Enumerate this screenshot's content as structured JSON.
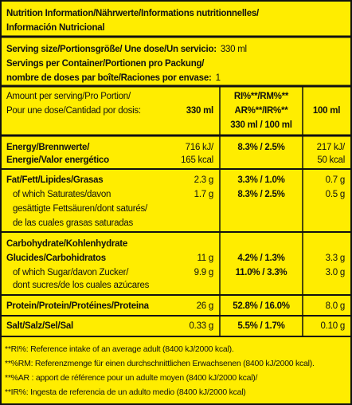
{
  "header": {
    "title": [
      "Nutrition Information/Nährwerte/Informations nutritionnelles/",
      "Información Nutricional"
    ]
  },
  "serving": {
    "size": {
      "label": "Serving size/Portionsgröße/ Une dose/Un servicio:",
      "value": "330 ml"
    },
    "per_container": {
      "label": [
        "Servings per Container/Portionen pro Packung/",
        "nombre de doses par boîte/Raciones por envase:"
      ],
      "value": "1"
    }
  },
  "table": {
    "columns": {
      "amount": [
        "Amount per serving/Pro Portion/",
        "Pour une dose/Cantidad por dosis:"
      ],
      "per_serving": "330 ml",
      "reference": [
        "RI%**/RM%**",
        "AR%**/IR%**",
        "330 ml / 100 ml"
      ],
      "per_100ml": "100 ml"
    },
    "rows": [
      {
        "label": [
          "Energy/Brennwerte/",
          "Energie/Valor energético"
        ],
        "per_serving": [
          "716 kJ/",
          "165 kcal"
        ],
        "reference": "8.3% / 2.5%",
        "per_100ml": [
          "217 kJ/",
          "50 kcal"
        ]
      },
      {
        "label": [
          "Fat/Fett/Lipides/Grasas"
        ],
        "per_serving": [
          "2.3 g"
        ],
        "reference": "3.3% / 1.0%",
        "per_100ml": [
          "0.7 g"
        ]
      },
      {
        "label": [
          "of which Saturates/davon",
          "gesättigte Fettsäuren/dont saturés/",
          "de las cuales grasas saturadas"
        ],
        "per_serving": [
          "1.7 g"
        ],
        "reference": "8.3% / 2.5%",
        "per_100ml": [
          "0.5 g"
        ]
      },
      {
        "label": [
          "Carbohydrate/Kohlenhydrate",
          "Glucides/Carbohidratos"
        ],
        "per_serving": [
          "11 g"
        ],
        "reference": "4.2% / 1.3%",
        "per_100ml": [
          "3.3 g"
        ]
      },
      {
        "label": [
          "of which Sugar/davon Zucker/",
          "dont sucres/de los cuales azúcares"
        ],
        "per_serving": [
          "9.9 g"
        ],
        "reference": "11.0% / 3.3%",
        "per_100ml": [
          "3.0 g"
        ]
      },
      {
        "label": [
          "Protein/Protein/Protéines/Proteina"
        ],
        "per_serving": [
          "26 g"
        ],
        "reference": "52.8% / 16.0%",
        "per_100ml": [
          "8.0 g"
        ]
      },
      {
        "label": [
          "Salt/Salz/Sel/Sal"
        ],
        "per_serving": [
          "0.33 g"
        ],
        "reference": "5.5% / 1.7%",
        "per_100ml": [
          "0.10 g"
        ]
      }
    ]
  },
  "footnotes": [
    "**RI%: Reference intake of an average adult (8400 kJ/2000 kcal).",
    "**%RM: Referenzmenge für einen durchschnittlichen Erwachsenen (8400 kJ/2000 kcal).",
    "**%AR : apport de référence pour un adulte moyen (8400 kJ/2000 kcal)/",
    "**IR%: Ingesta de referencia de un adulto medio (8400 kJ/2000 kcal)"
  ]
}
